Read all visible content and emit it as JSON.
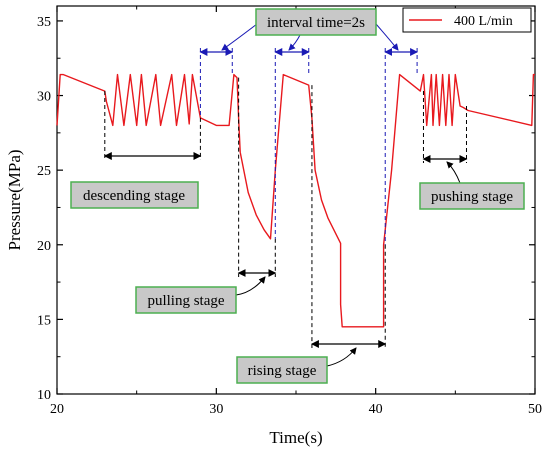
{
  "chart_data": {
    "type": "line",
    "xlabel": "Time(s)",
    "ylabel": "Pressure(MPa)",
    "xlim": [
      20,
      50
    ],
    "ylim": [
      10,
      36
    ],
    "xticks": [
      20,
      30,
      40,
      50
    ],
    "yticks": [
      10,
      15,
      20,
      25,
      30,
      35
    ],
    "xticks_minor": [
      25,
      35,
      45
    ],
    "grid": false,
    "legend_position": "top-right",
    "series": [
      {
        "name": "400 L/min",
        "color": "#e8191e",
        "x": [
          20.0,
          20.2,
          20.4,
          23.0,
          23.1,
          23.5,
          23.8,
          24.2,
          24.6,
          25.0,
          25.3,
          25.6,
          26.2,
          26.5,
          27.2,
          27.5,
          28.0,
          28.3,
          28.5,
          29.0,
          30.0,
          30.8,
          31.1,
          31.3,
          31.4,
          31.5,
          32.0,
          32.5,
          33.0,
          33.4,
          33.7,
          34.2,
          35.8,
          36.0,
          36.2,
          36.6,
          37.0,
          37.8,
          37.8,
          37.9,
          38.3,
          40.5,
          40.5,
          41.0,
          41.5,
          42.8,
          43.0,
          43.2,
          43.5,
          43.6,
          43.8,
          44.0,
          44.2,
          44.4,
          44.6,
          44.8,
          45.0,
          45.3,
          45.5,
          45.8,
          49.8,
          49.9,
          50.0
        ],
        "y": [
          28.0,
          31.4,
          31.4,
          30.3,
          29.6,
          28.0,
          31.4,
          28.0,
          31.4,
          28.0,
          31.4,
          28.0,
          31.4,
          28.0,
          31.4,
          28.0,
          31.4,
          28.1,
          31.4,
          28.5,
          28.0,
          28.0,
          31.4,
          31.2,
          28.5,
          26.2,
          23.5,
          22.0,
          21.0,
          20.4,
          25.0,
          31.4,
          30.7,
          28.5,
          25.0,
          23.0,
          21.8,
          20.1,
          16.0,
          14.5,
          14.5,
          14.5,
          20.0,
          25.0,
          31.4,
          30.3,
          31.4,
          28.0,
          31.4,
          28.0,
          31.4,
          28.0,
          31.4,
          28.0,
          31.4,
          28.0,
          31.4,
          29.3,
          29.2,
          29.0,
          28.0,
          31.4,
          31.4
        ]
      }
    ],
    "annotations": {
      "descending_stage": {
        "label": "descending stage",
        "x_start": 23.0,
        "x_end": 29.0
      },
      "pulling_stage": {
        "label": "pulling stage",
        "x_start": 31.4,
        "x_end": 33.7
      },
      "rising_stage": {
        "label": "rising stage",
        "x_start": 36.0,
        "x_end": 40.6
      },
      "pushing_stage": {
        "label": "pushing stage",
        "x_start": 43.0,
        "x_end": 45.7
      },
      "interval_time": {
        "label": "interval time=2s",
        "intervals": [
          [
            29.0,
            31.0
          ],
          [
            33.7,
            35.8
          ],
          [
            40.6,
            42.6
          ]
        ]
      }
    }
  }
}
